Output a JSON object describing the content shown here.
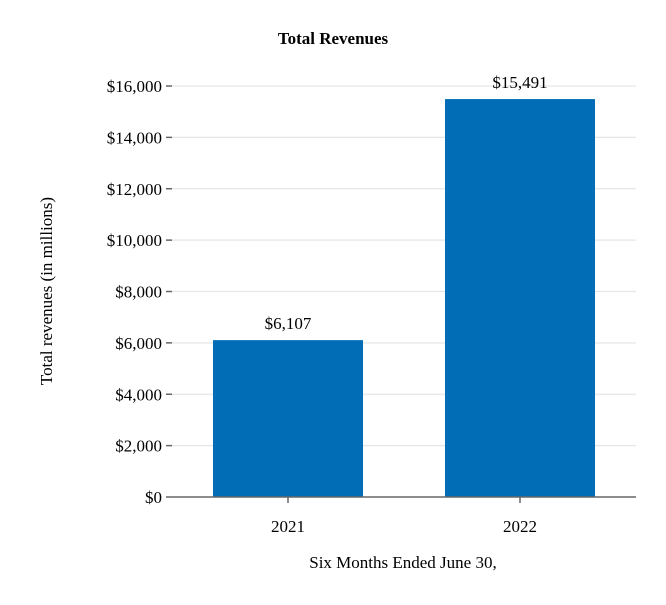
{
  "chart_data": {
    "type": "bar",
    "title": "Total Revenues",
    "xlabel": "Six Months Ended June 30,",
    "ylabel": "Total revenues (in millions)",
    "categories": [
      "2021",
      "2022"
    ],
    "values": [
      6107,
      15491
    ],
    "data_labels": [
      "$6,107",
      "$15,491"
    ],
    "ylim": [
      0,
      16000
    ],
    "yticks": [
      0,
      2000,
      4000,
      6000,
      8000,
      10000,
      12000,
      14000,
      16000
    ],
    "ytick_labels": [
      "$0",
      "$2,000",
      "$4,000",
      "$6,000",
      "$8,000",
      "$10,000",
      "$12,000",
      "$14,000",
      "$16,000"
    ],
    "bar_color": "#006db6",
    "grid": true,
    "legend": "none"
  }
}
